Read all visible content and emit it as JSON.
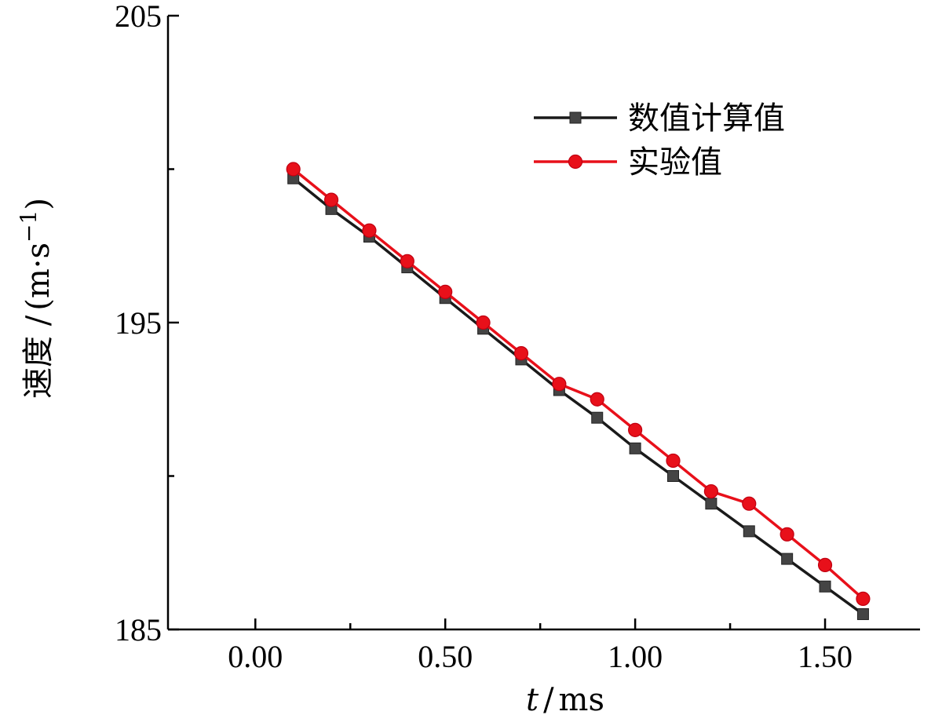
{
  "chart_data": {
    "type": "line",
    "xlabel_var": "t",
    "xlabel_unit": "ms",
    "ylabel_main": "速度 /",
    "ylabel_unit": "(m·s",
    "ylabel_exp": "−1",
    "ylabel_close": ")",
    "xlim": [
      -0.23,
      1.75
    ],
    "ylim": [
      185,
      205
    ],
    "x_ticks": [
      0.0,
      0.5,
      1.0,
      1.5
    ],
    "x_tick_labels": [
      "0.00",
      "0.50",
      "1.00",
      "1.50"
    ],
    "x_minor_ticks": [
      0.25,
      0.75,
      1.25
    ],
    "y_ticks": [
      185,
      195,
      205
    ],
    "y_tick_labels": [
      "185",
      "195",
      "205"
    ],
    "y_minor_ticks": [
      190,
      200
    ],
    "legend_position": "top-right",
    "x": [
      0.1,
      0.2,
      0.3,
      0.4,
      0.5,
      0.6,
      0.7,
      0.8,
      0.9,
      1.0,
      1.1,
      1.2,
      1.3,
      1.4,
      1.5,
      1.6
    ],
    "series": [
      {
        "name": "数值计算值",
        "color": "#1a1a1a",
        "marker": "square",
        "values": [
          199.7,
          198.7,
          197.8,
          196.8,
          195.8,
          194.8,
          193.8,
          192.8,
          191.9,
          190.9,
          190.0,
          189.1,
          188.2,
          187.3,
          186.4,
          185.5
        ]
      },
      {
        "name": "实验值",
        "color": "#e8101a",
        "marker": "circle",
        "values": [
          200.0,
          199.0,
          198.0,
          197.0,
          196.0,
          195.0,
          194.0,
          193.0,
          192.5,
          191.5,
          190.5,
          189.5,
          189.1,
          188.1,
          187.1,
          186.0
        ]
      }
    ]
  }
}
